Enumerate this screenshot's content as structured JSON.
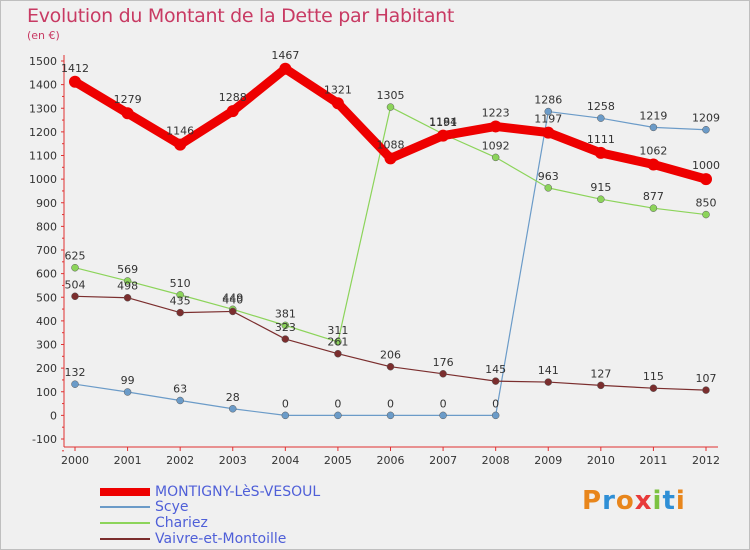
{
  "header": {
    "title": "Evolution du Montant de la Dette par Habitant",
    "unit": "(en €)"
  },
  "brand": {
    "letters": [
      "P",
      "r",
      "o",
      "x",
      "i",
      "t",
      "i"
    ],
    "colors": [
      "#e8861c",
      "#2f8fd6",
      "#e8861c",
      "#e83a3a",
      "#7cc242",
      "#2f8fd6",
      "#e8861c"
    ]
  },
  "chart_data": {
    "type": "line",
    "title": "Evolution du Montant de la Dette par Habitant",
    "ylabel": "(en €)",
    "xlabel": "",
    "x": [
      "2000",
      "2001",
      "2002",
      "2003",
      "2004",
      "2005",
      "2006",
      "2007",
      "2008",
      "2009",
      "2010",
      "2011",
      "2012"
    ],
    "ylim": [
      -100,
      1500
    ],
    "yticks": [
      -100,
      0,
      100,
      200,
      300,
      400,
      500,
      600,
      700,
      800,
      900,
      1000,
      1100,
      1200,
      1300,
      1400,
      1500
    ],
    "grid": false,
    "legend_position": "bottom-left",
    "series": [
      {
        "name": "MONTIGNY-LèS-VESOUL",
        "color": "#ee0000",
        "emphasis": true,
        "values": [
          1412,
          1279,
          1146,
          1288,
          1467,
          1321,
          1088,
          1184,
          1223,
          1197,
          1111,
          1062,
          1000
        ]
      },
      {
        "name": "Scye",
        "color": "#6b9bc8",
        "emphasis": false,
        "values": [
          132,
          99,
          63,
          28,
          0,
          0,
          0,
          0,
          0,
          1286,
          1258,
          1219,
          1209
        ]
      },
      {
        "name": "Chariez",
        "color": "#8cd45a",
        "emphasis": false,
        "values": [
          625,
          569,
          510,
          449,
          381,
          311,
          1305,
          1191,
          1092,
          963,
          915,
          877,
          850
        ]
      },
      {
        "name": "Vaivre-et-Montoille",
        "color": "#7b2e2e",
        "emphasis": false,
        "values": [
          504,
          498,
          435,
          440,
          323,
          261,
          206,
          176,
          145,
          141,
          127,
          115,
          107
        ]
      }
    ]
  }
}
